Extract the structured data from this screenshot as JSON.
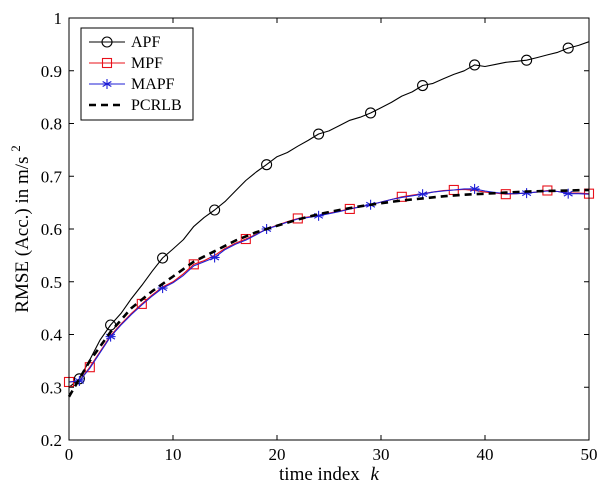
{
  "chart_data": {
    "type": "line",
    "xlabel": "time index",
    "xlabel_var": "k",
    "ylabel": "RMSE (Acc.) in m/s",
    "ylabel_sup": "2",
    "xlim": [
      0,
      50
    ],
    "ylim": [
      0.2,
      1.0
    ],
    "x_ticks": [
      "0",
      "10",
      "20",
      "30",
      "40",
      "50"
    ],
    "y_ticks": [
      "0.2",
      "0.3",
      "0.4",
      "0.5",
      "0.6",
      "0.7",
      "0.8",
      "0.9",
      "1"
    ],
    "grid": false,
    "legend_position": "top-left",
    "series": [
      {
        "name": "APF",
        "color": "#000000",
        "line": "solid",
        "marker": "circle",
        "marker_x": [
          1,
          4,
          9,
          14,
          19,
          24,
          29,
          34,
          39,
          44,
          48
        ],
        "x": [
          0,
          1,
          2,
          3,
          4,
          5,
          6,
          7,
          8,
          9,
          10,
          11,
          12,
          13,
          14,
          15,
          16,
          17,
          18,
          19,
          20,
          21,
          22,
          23,
          24,
          25,
          26,
          27,
          28,
          29,
          30,
          31,
          32,
          33,
          34,
          35,
          36,
          37,
          38,
          39,
          40,
          41,
          42,
          43,
          44,
          45,
          46,
          47,
          48,
          49,
          50
        ],
        "y": [
          0.3,
          0.316,
          0.352,
          0.39,
          0.418,
          0.44,
          0.468,
          0.493,
          0.52,
          0.545,
          0.562,
          0.58,
          0.605,
          0.622,
          0.636,
          0.652,
          0.672,
          0.692,
          0.708,
          0.722,
          0.737,
          0.745,
          0.757,
          0.768,
          0.78,
          0.786,
          0.796,
          0.806,
          0.812,
          0.82,
          0.83,
          0.84,
          0.852,
          0.86,
          0.872,
          0.876,
          0.885,
          0.893,
          0.9,
          0.911,
          0.908,
          0.912,
          0.916,
          0.918,
          0.92,
          0.925,
          0.93,
          0.935,
          0.943,
          0.948,
          0.955
        ]
      },
      {
        "name": "MPF",
        "color": "#e8101a",
        "line": "solid",
        "marker": "square",
        "marker_x": [
          0,
          2,
          7,
          12,
          17,
          22,
          27,
          32,
          37,
          42,
          46,
          50
        ],
        "x": [
          0,
          1,
          2,
          3,
          4,
          5,
          6,
          7,
          8,
          9,
          10,
          11,
          12,
          13,
          14,
          15,
          16,
          17,
          18,
          19,
          20,
          21,
          22,
          23,
          24,
          25,
          26,
          27,
          28,
          29,
          30,
          31,
          32,
          33,
          34,
          35,
          36,
          37,
          38,
          39,
          40,
          41,
          42,
          43,
          44,
          45,
          46,
          47,
          48,
          49,
          50
        ],
        "y": [
          0.31,
          0.312,
          0.338,
          0.368,
          0.398,
          0.42,
          0.44,
          0.458,
          0.475,
          0.49,
          0.5,
          0.515,
          0.533,
          0.54,
          0.55,
          0.563,
          0.573,
          0.581,
          0.59,
          0.6,
          0.607,
          0.614,
          0.62,
          0.623,
          0.626,
          0.63,
          0.634,
          0.638,
          0.642,
          0.646,
          0.651,
          0.656,
          0.661,
          0.664,
          0.667,
          0.67,
          0.673,
          0.674,
          0.675,
          0.673,
          0.67,
          0.668,
          0.666,
          0.667,
          0.668,
          0.67,
          0.673,
          0.671,
          0.668,
          0.668,
          0.667
        ]
      },
      {
        "name": "MAPF",
        "color": "#1f1fd6",
        "line": "solid",
        "marker": "asterisk",
        "marker_x": [
          1,
          4,
          9,
          14,
          19,
          24,
          29,
          34,
          39,
          44,
          48
        ],
        "x": [
          0,
          1,
          2,
          3,
          4,
          5,
          6,
          7,
          8,
          9,
          10,
          11,
          12,
          13,
          14,
          15,
          16,
          17,
          18,
          19,
          20,
          21,
          22,
          23,
          24,
          25,
          26,
          27,
          28,
          29,
          30,
          31,
          32,
          33,
          34,
          35,
          36,
          37,
          38,
          39,
          40,
          41,
          42,
          43,
          44,
          45,
          46,
          47,
          48,
          49,
          50
        ],
        "y": [
          0.31,
          0.312,
          0.336,
          0.366,
          0.396,
          0.418,
          0.438,
          0.456,
          0.473,
          0.488,
          0.498,
          0.512,
          0.53,
          0.538,
          0.546,
          0.561,
          0.571,
          0.579,
          0.589,
          0.6,
          0.606,
          0.613,
          0.619,
          0.622,
          0.625,
          0.629,
          0.633,
          0.638,
          0.642,
          0.646,
          0.651,
          0.656,
          0.66,
          0.663,
          0.666,
          0.67,
          0.672,
          0.674,
          0.676,
          0.676,
          0.672,
          0.669,
          0.667,
          0.667,
          0.668,
          0.67,
          0.672,
          0.671,
          0.667,
          0.667,
          0.666
        ]
      },
      {
        "name": "PCRLB",
        "color": "#000000",
        "line": "dashed",
        "marker": "none",
        "marker_x": [],
        "x": [
          0,
          2,
          4,
          6,
          8,
          10,
          12,
          14,
          16,
          18,
          20,
          22,
          24,
          26,
          28,
          30,
          32,
          34,
          36,
          38,
          40,
          42,
          44,
          46,
          48,
          50
        ],
        "y": [
          0.282,
          0.35,
          0.405,
          0.45,
          0.482,
          0.51,
          0.538,
          0.558,
          0.578,
          0.594,
          0.606,
          0.618,
          0.628,
          0.636,
          0.643,
          0.649,
          0.654,
          0.658,
          0.662,
          0.665,
          0.667,
          0.669,
          0.671,
          0.672,
          0.673,
          0.674
        ]
      }
    ]
  }
}
